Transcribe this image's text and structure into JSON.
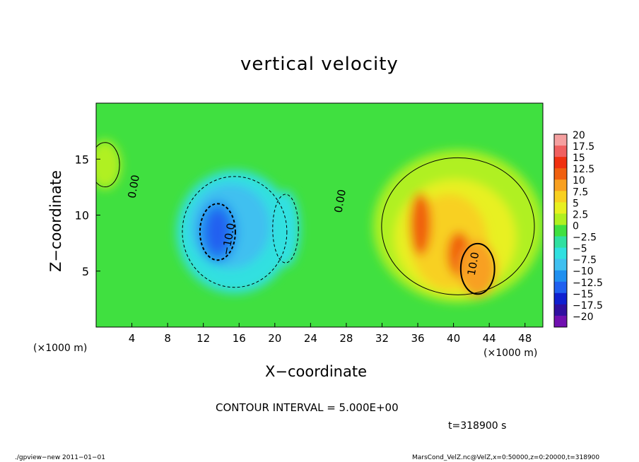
{
  "chart_data": {
    "type": "heatmap",
    "title": "vertical velocity",
    "xlabel": "X−coordinate",
    "ylabel": "Z−coordinate",
    "x_unit_left": "(×1000 m)",
    "x_unit_right": "(×1000 m)",
    "xlim": [
      0,
      50
    ],
    "ylim": [
      0,
      20
    ],
    "x_ticks": [
      "4",
      "8",
      "12",
      "16",
      "20",
      "24",
      "28",
      "32",
      "36",
      "40",
      "44",
      "48"
    ],
    "y_ticks": [
      "5",
      "10",
      "15"
    ],
    "colorbar": {
      "levels": [
        20,
        17.5,
        15,
        12.5,
        10,
        7.5,
        5,
        2.5,
        0,
        -2.5,
        -5,
        -7.5,
        -10,
        -12.5,
        -15,
        -17.5,
        -20
      ],
      "labels": [
        "20",
        "17.5",
        "15",
        "12.5",
        "10",
        "7.5",
        "5",
        "2.5",
        "0",
        "−2.5",
        "−5",
        "−7.5",
        "−10",
        "−12.5",
        "−15",
        "−17.5",
        "−20"
      ],
      "colors": [
        "#f5a0a0",
        "#f06060",
        "#f03010",
        "#f06010",
        "#f8a020",
        "#f8d020",
        "#e8f020",
        "#b0f020",
        "#40e040",
        "#30e0a0",
        "#30e0e0",
        "#40c0f0",
        "#2090f0",
        "#2060f0",
        "#1020d0",
        "#3010a0",
        "#7010b0"
      ]
    },
    "contour_labels": [
      {
        "text": "0.00",
        "x": 4.6,
        "y": 12.5
      },
      {
        "text": "0.00",
        "x": 27.7,
        "y": 11.2
      },
      {
        "text": "−10.0",
        "x": 15.2,
        "y": 7.8
      },
      {
        "text": "10.0",
        "x": 42.6,
        "y": 5.6
      }
    ],
    "blobs": [
      {
        "value": -5,
        "x": 15.5,
        "y": 8.5,
        "rx": 6.5,
        "ry": 5.5
      },
      {
        "value": -7.5,
        "x": 15,
        "y": 9,
        "rx": 4.5,
        "ry": 3.8
      },
      {
        "value": -10,
        "x": 13.6,
        "y": 8.5,
        "rx": 2.2,
        "ry": 2.8
      },
      {
        "value": -12.5,
        "x": 13.6,
        "y": 8.5,
        "rx": 1.3,
        "ry": 2.0
      },
      {
        "value": -5,
        "x": 21.2,
        "y": 8.8,
        "rx": 1.6,
        "ry": 3.4
      },
      {
        "value": 2.5,
        "x": 40.5,
        "y": 9.0,
        "rx": 9.5,
        "ry": 6.8
      },
      {
        "value": 5,
        "x": 40.2,
        "y": 8.0,
        "rx": 6.8,
        "ry": 5.2
      },
      {
        "value": 7.5,
        "x": 39.5,
        "y": 7.6,
        "rx": 4.3,
        "ry": 4.3
      },
      {
        "value": 12.5,
        "x": 36.3,
        "y": 9.2,
        "rx": 1.2,
        "ry": 2.8
      },
      {
        "value": 12.5,
        "x": 40.6,
        "y": 6.5,
        "rx": 1.3,
        "ry": 2.0
      },
      {
        "value": 10,
        "x": 42.7,
        "y": 5.2,
        "rx": 2.1,
        "ry": 2.5
      },
      {
        "value": 2.5,
        "x": 1,
        "y": 14.5,
        "rx": 1.8,
        "ry": 2.2
      }
    ],
    "contour_interval": "CONTOUR INTERVAL = 5.000E+00",
    "time": "t=318900 s"
  },
  "footer": {
    "left": "./gpview−new  2011−01−01",
    "right": "MarsCond_VelZ.nc@VelZ,x=0:50000,z=0:20000,t=318900"
  }
}
